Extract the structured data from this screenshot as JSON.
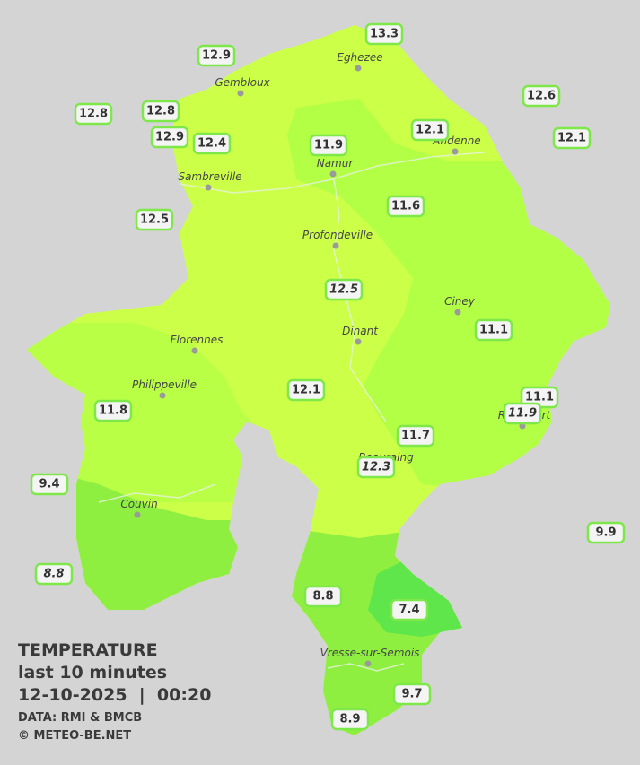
{
  "map": {
    "title": {
      "heading": "TEMPERATURE",
      "period": "last 10 minutes",
      "timestamp": "12-10-2025  |  00:20",
      "source": "DATA: RMI & BMCB",
      "credit": "© METEO-BE.NET"
    },
    "cities": [
      "Eghezee",
      "Gembloux",
      "Andenne",
      "Namur",
      "Sambreville",
      "Profondeville",
      "Ciney",
      "Dinant",
      "Florennes",
      "Philippeville",
      "Rochefort",
      "Beauraing",
      "Couvin",
      "Vresse-sur-Semois"
    ],
    "stations": [
      {
        "value": "13.3"
      },
      {
        "value": "12.9"
      },
      {
        "value": "12.8"
      },
      {
        "value": "12.8"
      },
      {
        "value": "12.9"
      },
      {
        "value": "12.4"
      },
      {
        "value": "12.6"
      },
      {
        "value": "12.1"
      },
      {
        "value": "12.1"
      },
      {
        "value": "11.9"
      },
      {
        "value": "12.5"
      },
      {
        "value": "11.6"
      },
      {
        "value": "12.5",
        "italic": true
      },
      {
        "value": "11.1"
      },
      {
        "value": "12.1"
      },
      {
        "value": "11.8"
      },
      {
        "value": "11.1"
      },
      {
        "value": "11.9",
        "italic": true
      },
      {
        "value": "11.7"
      },
      {
        "value": "12.3",
        "italic": true
      },
      {
        "value": "9.4"
      },
      {
        "value": "9.9"
      },
      {
        "value": "8.8",
        "italic": true
      },
      {
        "value": "8.8"
      },
      {
        "value": "7.4"
      },
      {
        "value": "9.7"
      },
      {
        "value": "8.9"
      }
    ]
  }
}
